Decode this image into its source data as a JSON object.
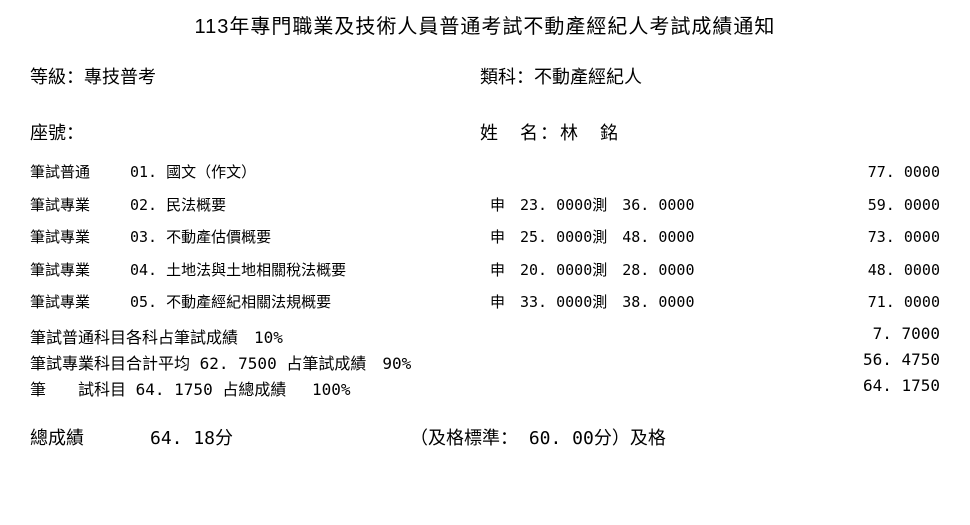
{
  "title": "113年專門職業及技術人員普通考試不動產經紀人考試成績通知",
  "level_label": "等級：專技普考",
  "category_label": "類科：不動產經紀人",
  "seat_label": "座號：",
  "name_label": "姓　名：林　銘",
  "subjects": [
    {
      "cat": "筆試普通",
      "name": "01. 國文（作文）",
      "mid": "",
      "total": "77. 0000"
    },
    {
      "cat": "筆試專業",
      "name": "02. 民法概要",
      "mid": "申　23. 0000測　36. 0000",
      "total": "59. 0000"
    },
    {
      "cat": "筆試專業",
      "name": "03. 不動產估價概要",
      "mid": "申　25. 0000測　48. 0000",
      "total": "73. 0000"
    },
    {
      "cat": "筆試專業",
      "name": "04. 土地法與土地相關稅法概要",
      "mid": "申　20. 0000測　28. 0000",
      "total": "48. 0000"
    },
    {
      "cat": "筆試專業",
      "name": "05. 不動產經紀相關法規概要",
      "mid": "申　33. 0000測　38. 0000",
      "total": "71. 0000"
    }
  ],
  "weights": [
    {
      "text": "筆試普通科目各科占筆試成績　10%",
      "value": "7. 7000"
    },
    {
      "text": "筆試專業科目合計平均 62. 7500 占筆試成績　90%",
      "value": "56. 4750"
    },
    {
      "text": "筆　　試科目 64. 1750 占總成績　 100%",
      "value": "64. 1750"
    }
  ],
  "final_label": "總成績",
  "final_score": "64. 18分",
  "final_pass": "（及格標準： 60. 00分）及格"
}
